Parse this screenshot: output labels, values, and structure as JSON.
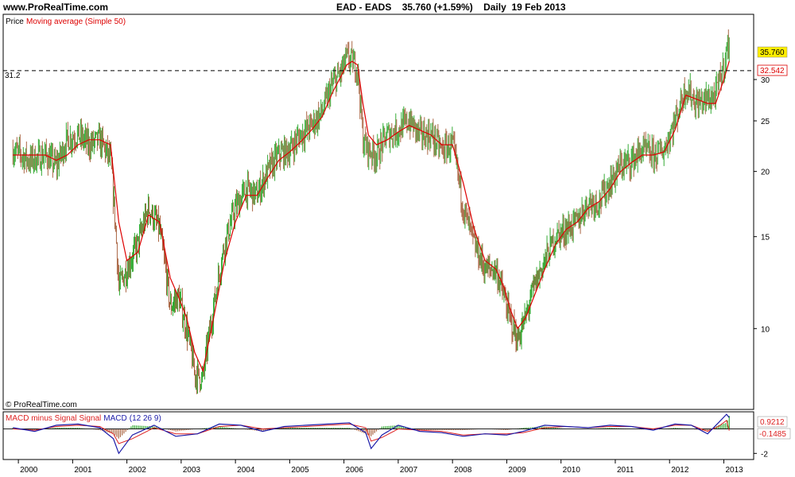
{
  "site_label": "www.ProRealTime.com",
  "header": {
    "ticker": "EAD - EADS",
    "price": "35.760",
    "change": "(+1.59%)",
    "period": "Daily",
    "date": "19 Feb 2013"
  },
  "price_panel": {
    "legend_price": "Price",
    "legend_ma": "Moving average (Simple 50)",
    "reference_line_label": "31.2",
    "last_price_badge": "35.760",
    "ma_badge": "32.542",
    "copyright": "© ProRealTime.com"
  },
  "macd_panel": {
    "legend_hist": "MACD minus Signal",
    "legend_signal": "Signal",
    "legend_macd": "MACD",
    "legend_params": "(12 26 9)",
    "macd_badge": "0.9212",
    "signal_badge": "-0.1485"
  },
  "colors": {
    "up_bar": "#33aa33",
    "down_bar": "#aa6644",
    "moving_average": "#dd0000",
    "macd_line": "#1a1aa8",
    "signal_line": "#dd2222",
    "badge_last": "#ffee00",
    "axis": "#000000"
  },
  "chart_data": [
    {
      "type": "line",
      "title": "EAD - EADS",
      "scale": "log",
      "ylim": [
        7,
        40
      ],
      "x_ticks": [
        "2000",
        "2001",
        "2002",
        "2003",
        "2004",
        "2005",
        "2006",
        "2007",
        "2008",
        "2009",
        "2010",
        "2011",
        "2012",
        "2013"
      ],
      "y_ticks": [
        10,
        15,
        20,
        25,
        30
      ],
      "reference_line": 31.2,
      "series": [
        {
          "name": "Price",
          "x": [
            1999.9,
            2000.2,
            2000.5,
            2000.7,
            2000.9,
            2001.1,
            2001.3,
            2001.5,
            2001.7,
            2001.85,
            2002.0,
            2002.2,
            2002.4,
            2002.6,
            2002.8,
            2002.95,
            2003.1,
            2003.25,
            2003.4,
            2003.6,
            2003.8,
            2004.0,
            2004.2,
            2004.4,
            2004.6,
            2004.8,
            2005.0,
            2005.2,
            2005.4,
            2005.6,
            2005.8,
            2005.95,
            2006.05,
            2006.15,
            2006.25,
            2006.35,
            2006.45,
            2006.6,
            2006.8,
            2007.0,
            2007.2,
            2007.4,
            2007.6,
            2007.8,
            2008.0,
            2008.2,
            2008.4,
            2008.6,
            2008.8,
            2008.95,
            2009.05,
            2009.2,
            2009.35,
            2009.5,
            2009.7,
            2009.9,
            2010.1,
            2010.3,
            2010.5,
            2010.7,
            2010.9,
            2011.1,
            2011.3,
            2011.5,
            2011.7,
            2011.9,
            2012.1,
            2012.3,
            2012.5,
            2012.7,
            2012.85,
            2013.0,
            2013.1
          ],
          "values": [
            22.0,
            21.0,
            21.5,
            20.5,
            23.0,
            23.5,
            22.5,
            23.0,
            21.0,
            12.0,
            13.0,
            14.5,
            17.0,
            15.5,
            11.0,
            11.5,
            10.0,
            8.2,
            8.0,
            11.0,
            14.5,
            17.0,
            18.5,
            18.0,
            20.0,
            21.5,
            22.0,
            23.5,
            24.5,
            26.0,
            29.5,
            31.0,
            33.0,
            32.5,
            31.5,
            23.0,
            22.0,
            21.5,
            23.5,
            24.0,
            25.0,
            23.5,
            23.5,
            22.0,
            22.5,
            17.0,
            14.5,
            13.0,
            13.0,
            11.5,
            10.5,
            9.5,
            10.5,
            12.0,
            13.5,
            15.0,
            15.5,
            16.0,
            17.5,
            17.5,
            19.0,
            20.5,
            21.0,
            22.0,
            21.5,
            22.0,
            25.0,
            29.0,
            27.0,
            27.5,
            28.0,
            32.0,
            35.76
          ]
        },
        {
          "name": "Moving average (Simple 50)",
          "x": [
            1999.9,
            2000.2,
            2000.5,
            2000.7,
            2000.9,
            2001.1,
            2001.3,
            2001.5,
            2001.7,
            2001.85,
            2002.0,
            2002.2,
            2002.4,
            2002.6,
            2002.8,
            2002.95,
            2003.1,
            2003.25,
            2003.4,
            2003.6,
            2003.8,
            2004.0,
            2004.2,
            2004.4,
            2004.6,
            2004.8,
            2005.0,
            2005.2,
            2005.4,
            2005.6,
            2005.8,
            2005.95,
            2006.05,
            2006.15,
            2006.25,
            2006.35,
            2006.45,
            2006.6,
            2006.8,
            2007.0,
            2007.2,
            2007.4,
            2007.6,
            2007.8,
            2008.0,
            2008.2,
            2008.4,
            2008.6,
            2008.8,
            2008.95,
            2009.05,
            2009.2,
            2009.35,
            2009.5,
            2009.7,
            2009.9,
            2010.1,
            2010.3,
            2010.5,
            2010.7,
            2010.9,
            2011.1,
            2011.3,
            2011.5,
            2011.7,
            2011.9,
            2012.1,
            2012.3,
            2012.5,
            2012.7,
            2012.85,
            2013.0,
            2013.1
          ],
          "values": [
            21.5,
            21.5,
            21.5,
            21.0,
            21.5,
            22.5,
            23.0,
            23.0,
            22.5,
            16.0,
            13.5,
            14.0,
            16.5,
            16.0,
            12.5,
            11.5,
            10.5,
            9.0,
            8.3,
            10.5,
            13.5,
            16.0,
            18.0,
            18.0,
            19.5,
            21.0,
            21.8,
            22.8,
            24.0,
            25.5,
            28.5,
            30.5,
            32.0,
            32.5,
            32.0,
            27.0,
            23.5,
            22.5,
            23.0,
            23.8,
            24.5,
            24.0,
            23.5,
            22.5,
            22.5,
            19.0,
            15.5,
            13.5,
            13.0,
            12.0,
            11.0,
            10.0,
            10.5,
            11.5,
            13.0,
            14.5,
            15.5,
            16.0,
            17.0,
            17.5,
            18.5,
            20.0,
            20.8,
            21.5,
            21.5,
            21.8,
            24.0,
            28.0,
            27.5,
            27.0,
            27.0,
            30.0,
            32.542
          ]
        }
      ]
    },
    {
      "type": "line",
      "title": "MACD (12 26 9)",
      "y_ticks": [
        -2
      ],
      "ylim": [
        -2.5,
        1.4
      ],
      "series": [
        {
          "name": "MACD",
          "x": [
            1999.9,
            2000.3,
            2000.7,
            2001.1,
            2001.5,
            2001.75,
            2001.85,
            2002.1,
            2002.5,
            2002.9,
            2003.3,
            2003.7,
            2004.1,
            2004.5,
            2004.9,
            2005.3,
            2005.7,
            2006.1,
            2006.4,
            2006.5,
            2006.7,
            2007.0,
            2007.4,
            2007.8,
            2008.2,
            2008.6,
            2009.0,
            2009.3,
            2009.7,
            2010.1,
            2010.5,
            2010.9,
            2011.3,
            2011.7,
            2012.1,
            2012.4,
            2012.7,
            2012.9,
            2013.05,
            2013.1
          ],
          "values": [
            0.1,
            -0.2,
            0.3,
            0.4,
            0.1,
            -0.8,
            -2.0,
            -0.5,
            0.3,
            -0.6,
            -0.4,
            0.4,
            0.3,
            -0.2,
            0.2,
            0.3,
            0.4,
            0.5,
            -0.3,
            -1.6,
            -0.5,
            0.3,
            -0.2,
            -0.3,
            -0.6,
            -0.4,
            -0.5,
            -0.2,
            0.3,
            0.2,
            0.1,
            0.3,
            0.2,
            -0.1,
            0.4,
            0.3,
            -0.4,
            0.5,
            1.2,
            0.9212
          ]
        },
        {
          "name": "Signal",
          "x": [
            1999.9,
            2000.3,
            2000.7,
            2001.1,
            2001.5,
            2001.75,
            2001.85,
            2002.1,
            2002.5,
            2002.9,
            2003.3,
            2003.7,
            2004.1,
            2004.5,
            2004.9,
            2005.3,
            2005.7,
            2006.1,
            2006.4,
            2006.5,
            2006.7,
            2007.0,
            2007.4,
            2007.8,
            2008.2,
            2008.6,
            2009.0,
            2009.3,
            2009.7,
            2010.1,
            2010.5,
            2010.9,
            2011.3,
            2011.7,
            2012.1,
            2012.4,
            2012.7,
            2012.9,
            2013.05,
            2013.1
          ],
          "values": [
            0.0,
            -0.1,
            0.2,
            0.3,
            0.2,
            -0.4,
            -1.2,
            -0.8,
            0.1,
            -0.4,
            -0.4,
            0.2,
            0.3,
            0.0,
            0.1,
            0.2,
            0.3,
            0.4,
            0.1,
            -1.0,
            -0.7,
            0.0,
            -0.1,
            -0.2,
            -0.5,
            -0.4,
            -0.4,
            -0.3,
            0.1,
            0.2,
            0.1,
            0.2,
            0.2,
            0.0,
            0.3,
            0.3,
            -0.2,
            0.2,
            0.7,
            -0.1485
          ]
        }
      ]
    }
  ]
}
